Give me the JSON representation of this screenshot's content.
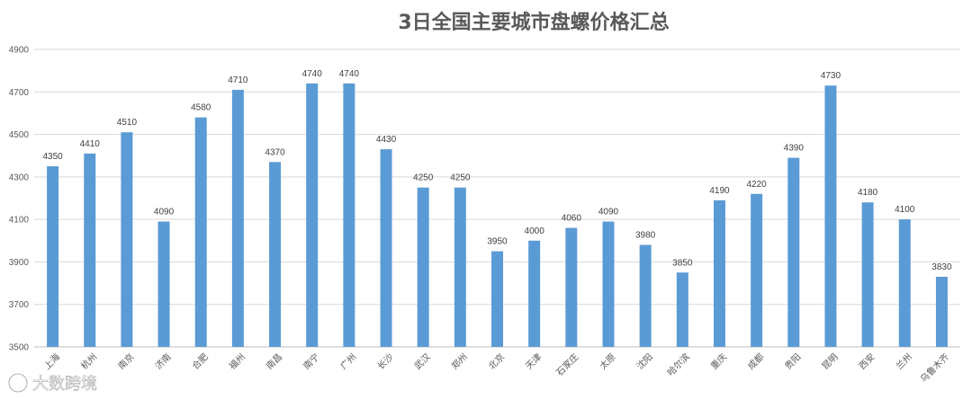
{
  "watermark": "大数跨境",
  "chart_data": {
    "type": "bar",
    "title": "3日全国主要城市盘螺价格汇总",
    "xlabel": "",
    "ylabel": "",
    "ylim": [
      3500,
      4900
    ],
    "yticks": [
      3500,
      3700,
      3900,
      4100,
      4300,
      4500,
      4700,
      4900
    ],
    "grid": true,
    "legend": "none",
    "bar_color": "#5b9bd5",
    "categories": [
      "上海",
      "杭州",
      "南京",
      "济南",
      "合肥",
      "福州",
      "南昌",
      "南宁",
      "广州",
      "长沙",
      "武汉",
      "郑州",
      "北京",
      "天津",
      "石家庄",
      "太原",
      "沈阳",
      "哈尔滨",
      "重庆",
      "成都",
      "贵阳",
      "昆明",
      "西安",
      "兰州",
      "乌鲁木齐"
    ],
    "values": [
      4350,
      4410,
      4510,
      4090,
      4580,
      4710,
      4370,
      4740,
      4740,
      4430,
      4250,
      4250,
      3950,
      4000,
      4060,
      4090,
      3980,
      3850,
      4190,
      4220,
      4390,
      4730,
      4180,
      4100,
      3830
    ]
  }
}
